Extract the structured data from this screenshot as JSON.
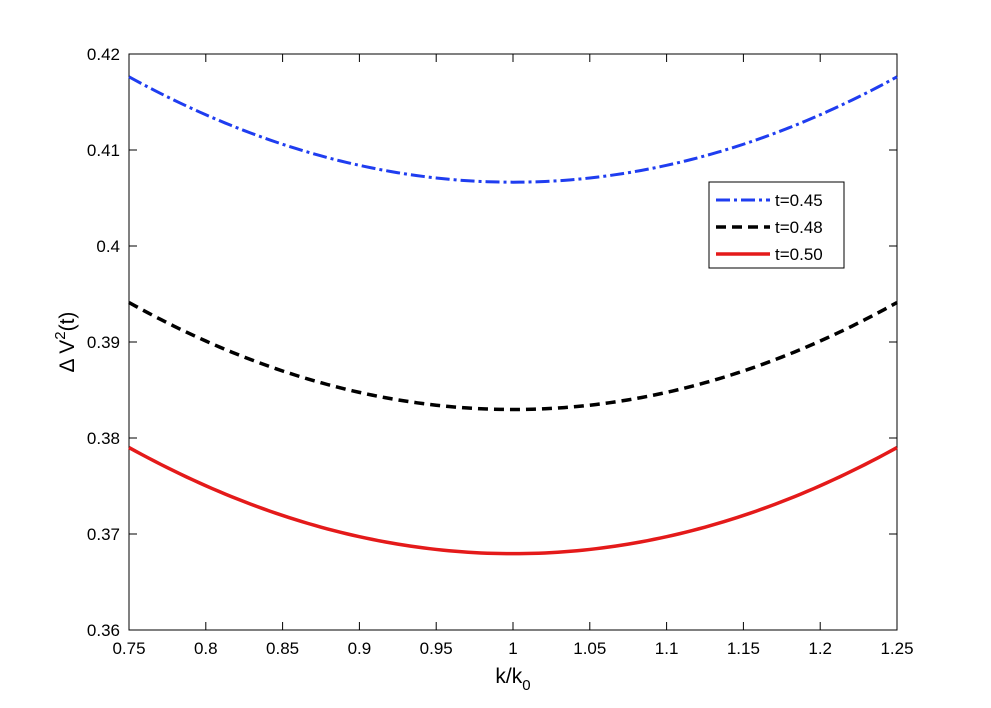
{
  "chart_data": {
    "type": "line",
    "xlabel": "k/k",
    "xlabel_sub": "0",
    "ylabel": "Δ V",
    "ylabel_sup": "2",
    "ylabel_suffix": "(t)",
    "xlim": [
      0.75,
      1.25
    ],
    "ylim": [
      0.36,
      0.42
    ],
    "xticks": [
      "0.75",
      "0.8",
      "0.85",
      "0.9",
      "0.95",
      "1",
      "1.05",
      "1.1",
      "1.15",
      "1.2",
      "1.25"
    ],
    "yticks": [
      "0.36",
      "0.37",
      "0.38",
      "0.39",
      "0.4",
      "0.41",
      "0.42"
    ],
    "grid": false,
    "legend_position": "upper-right",
    "series": [
      {
        "name": "t=0.45",
        "color": "#1f3df0",
        "style": "dash-dot",
        "x": [
          0.75,
          0.8,
          0.85,
          0.9,
          0.95,
          1.0,
          1.05,
          1.1,
          1.15,
          1.2,
          1.25
        ],
        "y": [
          0.4176,
          0.4137,
          0.4106,
          0.4084,
          0.4071,
          0.4066,
          0.4071,
          0.4084,
          0.4106,
          0.4137,
          0.4176
        ]
      },
      {
        "name": "t=0.48",
        "color": "#000000",
        "style": "dashed",
        "x": [
          0.75,
          0.8,
          0.85,
          0.9,
          0.95,
          1.0,
          1.05,
          1.1,
          1.15,
          1.2,
          1.25
        ],
        "y": [
          0.3941,
          0.3901,
          0.387,
          0.3848,
          0.3834,
          0.3829,
          0.3834,
          0.3848,
          0.387,
          0.3901,
          0.3941
        ]
      },
      {
        "name": "t=0.50",
        "color": "#e41a1a",
        "style": "solid",
        "x": [
          0.75,
          0.8,
          0.85,
          0.9,
          0.95,
          1.0,
          1.05,
          1.1,
          1.15,
          1.2,
          1.25
        ],
        "y": [
          0.379,
          0.375,
          0.372,
          0.3697,
          0.3684,
          0.3679,
          0.3684,
          0.3697,
          0.372,
          0.375,
          0.379
        ]
      }
    ]
  }
}
